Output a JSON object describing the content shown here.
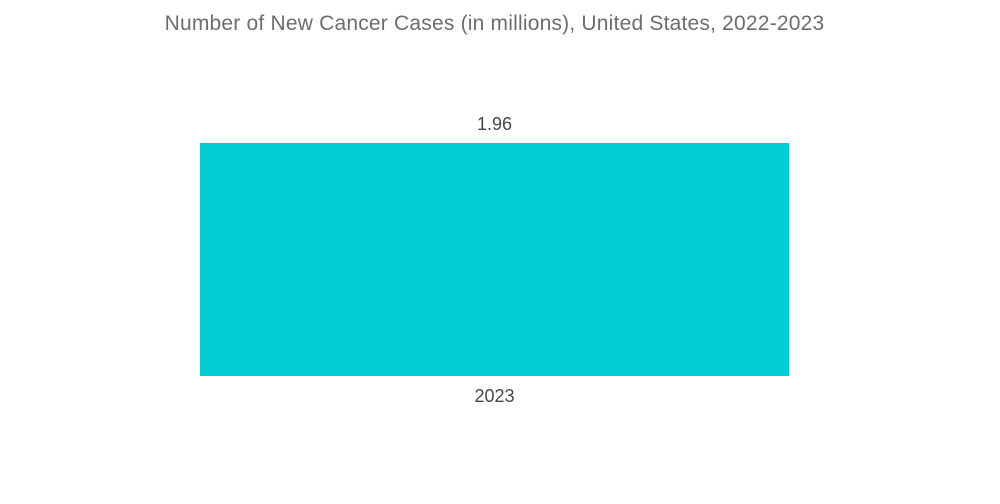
{
  "chart_data": {
    "type": "bar",
    "title": "Number of New Cancer Cases (in millions), United States, 2022-2023",
    "categories": [
      "2023"
    ],
    "values": [
      1.96
    ],
    "value_labels": [
      "1.96"
    ],
    "series": [
      {
        "name": "Number of New Cancer Cases (in millions)",
        "values": [
          1.96
        ]
      }
    ],
    "xlabel": "",
    "ylabel": "",
    "ylim": [
      0,
      1.96
    ],
    "grid": false,
    "legend_position": "none",
    "axes_visible": false,
    "colors": {
      "bar": "#00CDD2",
      "title_text": "#6b6e70",
      "label_text": "#45484a",
      "background": "#ffffff"
    }
  }
}
